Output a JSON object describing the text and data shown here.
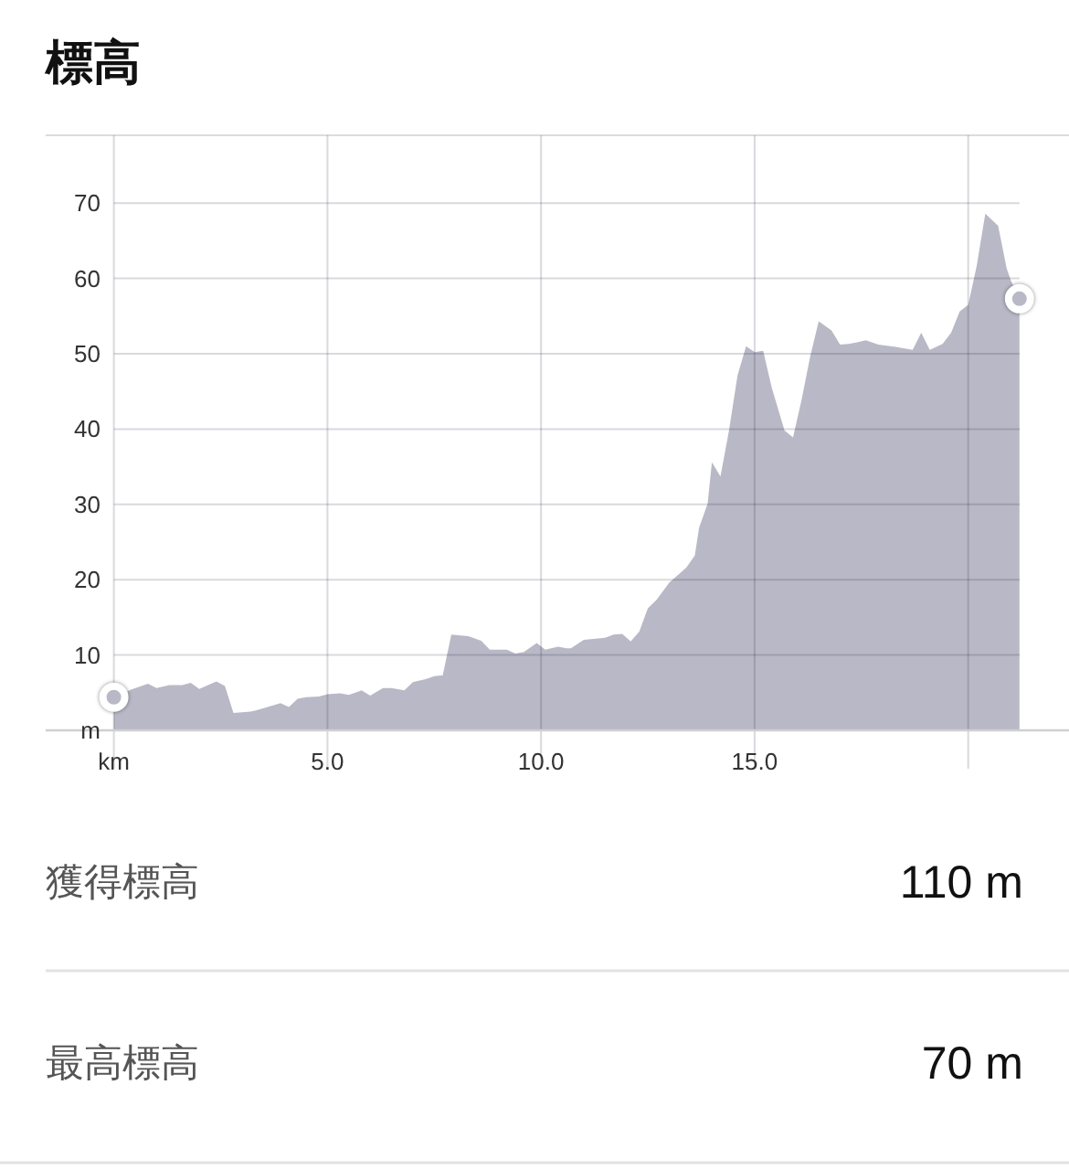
{
  "chart_data": {
    "type": "area",
    "title": "標高",
    "xlim": [
      0,
      21.2
    ],
    "xticks": [
      {
        "value": 0,
        "label": "km"
      },
      {
        "value": 5,
        "label": "5.0"
      },
      {
        "value": 10,
        "label": "10.0"
      },
      {
        "value": 15,
        "label": "15.0"
      },
      {
        "value": 20,
        "label": null
      }
    ],
    "ylim": [
      0,
      79
    ],
    "yticks": [
      {
        "value": 0,
        "label": "m"
      },
      10,
      20,
      30,
      40,
      50,
      60,
      70
    ],
    "grid": true,
    "series": [
      {
        "color": "#b9b8c6",
        "x": [
          0,
          0.4,
          0.8,
          1.0,
          1.3,
          1.6,
          1.8,
          2.0,
          2.4,
          2.6,
          2.8,
          3.2,
          3.3,
          3.6,
          3.9,
          4.1,
          4.3,
          4.5,
          4.8,
          5.0,
          5.3,
          5.5,
          5.8,
          6.0,
          6.3,
          6.5,
          6.8,
          7.0,
          7.3,
          7.5,
          7.7,
          7.9,
          8.3,
          8.6,
          8.8,
          9.2,
          9.4,
          9.6,
          9.9,
          10.1,
          10.4,
          10.6,
          10.7,
          11.0,
          11.5,
          11.7,
          11.9,
          12.1,
          12.3,
          12.5,
          12.7,
          13.0,
          13.2,
          13.4,
          13.6,
          13.7,
          13.9,
          14.0,
          14.2,
          14.4,
          14.6,
          14.8,
          15.0,
          15.2,
          15.4,
          15.7,
          15.9,
          16.1,
          16.3,
          16.5,
          16.8,
          17.0,
          17.2,
          17.4,
          17.6,
          17.9,
          18.3,
          18.7,
          18.9,
          19.1,
          19.4,
          19.6,
          19.8,
          20.0,
          20.2,
          20.4,
          20.7,
          20.9,
          21.0,
          21.2
        ],
        "values": [
          4.4,
          5.4,
          6.2,
          5.6,
          6.0,
          6.0,
          6.3,
          5.5,
          6.5,
          5.9,
          2.3,
          2.5,
          2.6,
          3.1,
          3.6,
          3.1,
          4.2,
          4.4,
          4.5,
          4.8,
          4.9,
          4.7,
          5.3,
          4.6,
          5.6,
          5.6,
          5.3,
          6.4,
          6.8,
          7.2,
          7.3,
          12.7,
          12.5,
          11.9,
          10.7,
          10.7,
          10.2,
          10.4,
          11.6,
          10.7,
          11.1,
          10.9,
          10.9,
          12.0,
          12.3,
          12.7,
          12.8,
          11.8,
          13.1,
          16.2,
          17.3,
          19.6,
          20.6,
          21.6,
          23.2,
          26.9,
          30.1,
          35.6,
          33.7,
          39.8,
          47.1,
          51.0,
          50.2,
          50.4,
          45.5,
          39.8,
          38.9,
          43.9,
          49.6,
          54.3,
          53.1,
          51.2,
          51.3,
          51.5,
          51.8,
          51.2,
          50.9,
          50.5,
          52.8,
          50.5,
          51.3,
          52.8,
          55.6,
          56.5,
          61.7,
          68.6,
          67.0,
          61.3,
          59.7,
          57.3
        ]
      },
      {
        "type": "scatter",
        "color": "#b9b8c6",
        "marker": "circle",
        "x": [
          0,
          21.2
        ],
        "values": [
          4.4,
          57.3
        ]
      }
    ],
    "annotations": [
      "獲得標高",
      "110 m",
      "最高標高",
      "70 m"
    ]
  }
}
